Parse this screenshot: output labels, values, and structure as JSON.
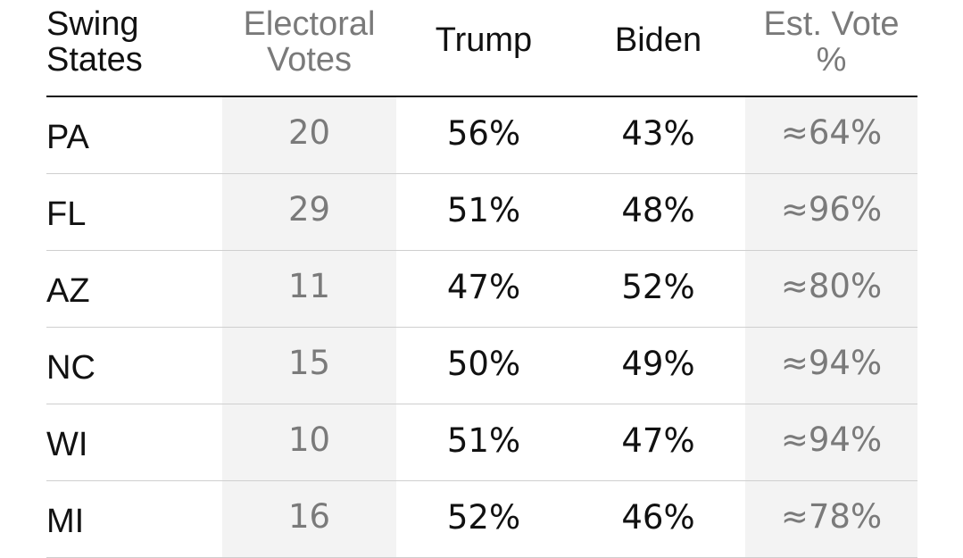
{
  "headers": {
    "state": [
      "Swing",
      "States"
    ],
    "electoral_votes": [
      "Electoral",
      "Votes"
    ],
    "trump": "Trump",
    "biden": "Biden",
    "est_vote": [
      "Est. Vote",
      "%"
    ]
  },
  "rows": [
    {
      "state": "PA",
      "electoral_votes": "20",
      "trump": "56%",
      "biden": "43%",
      "est_vote": "≈64%"
    },
    {
      "state": "FL",
      "electoral_votes": "29",
      "trump": "51%",
      "biden": "48%",
      "est_vote": "≈96%"
    },
    {
      "state": "AZ",
      "electoral_votes": "11",
      "trump": "47%",
      "biden": "52%",
      "est_vote": "≈80%"
    },
    {
      "state": "NC",
      "electoral_votes": "15",
      "trump": "50%",
      "biden": "49%",
      "est_vote": "≈94%"
    },
    {
      "state": "WI",
      "electoral_votes": "10",
      "trump": "51%",
      "biden": "47%",
      "est_vote": "≈94%"
    },
    {
      "state": "MI",
      "electoral_votes": "16",
      "trump": "52%",
      "biden": "46%",
      "est_vote": "≈78%"
    }
  ],
  "colors": {
    "text_primary": "#111111",
    "text_muted": "#7a7a7a",
    "shaded_column_bg": "#f3f3f3",
    "row_divider": "#cfcfcf"
  }
}
